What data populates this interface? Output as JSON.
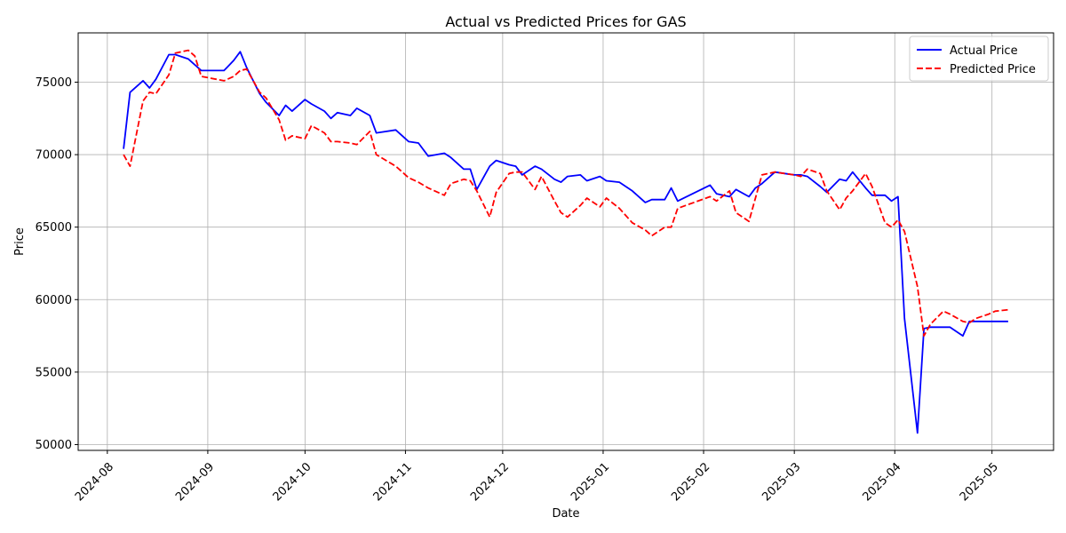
{
  "chart_data": {
    "type": "line",
    "title": "Actual vs Predicted Prices for GAS",
    "xlabel": "Date",
    "ylabel": "Price",
    "grid": true,
    "legend_position": "top-right",
    "x_range": [
      "2024-07-23",
      "2025-05-20"
    ],
    "ylim": [
      49600,
      78400
    ],
    "x_ticks": [
      "2024-08",
      "2024-09",
      "2024-10",
      "2024-11",
      "2024-12",
      "2025-01",
      "2025-02",
      "2025-03",
      "2025-04",
      "2025-05"
    ],
    "y_ticks": [
      50000,
      55000,
      60000,
      65000,
      70000,
      75000
    ],
    "colors": {
      "actual": "#0000ff",
      "predicted": "#ff0000"
    },
    "series": [
      {
        "name": "Actual Price",
        "color": "#0000ff",
        "style": "solid",
        "x": [
          "2024-08-06",
          "2024-08-08",
          "2024-08-12",
          "2024-08-14",
          "2024-08-16",
          "2024-08-20",
          "2024-08-22",
          "2024-08-26",
          "2024-08-28",
          "2024-08-30",
          "2024-09-06",
          "2024-09-09",
          "2024-09-11",
          "2024-09-13",
          "2024-09-17",
          "2024-09-19",
          "2024-09-23",
          "2024-09-25",
          "2024-09-27",
          "2024-10-01",
          "2024-10-03",
          "2024-10-07",
          "2024-10-09",
          "2024-10-11",
          "2024-10-15",
          "2024-10-17",
          "2024-10-21",
          "2024-10-23",
          "2024-10-29",
          "2024-11-02",
          "2024-11-05",
          "2024-11-08",
          "2024-11-13",
          "2024-11-15",
          "2024-11-19",
          "2024-11-21",
          "2024-11-23",
          "2024-11-27",
          "2024-11-29",
          "2024-12-03",
          "2024-12-05",
          "2024-12-07",
          "2024-12-11",
          "2024-12-13",
          "2024-12-17",
          "2024-12-19",
          "2024-12-21",
          "2024-12-25",
          "2024-12-27",
          "2024-12-31",
          "2025-01-02",
          "2025-01-06",
          "2025-01-10",
          "2025-01-14",
          "2025-01-16",
          "2025-01-20",
          "2025-01-22",
          "2025-01-24",
          "2025-02-03",
          "2025-02-05",
          "2025-02-09",
          "2025-02-11",
          "2025-02-15",
          "2025-02-17",
          "2025-02-19",
          "2025-02-23",
          "2025-03-01",
          "2025-03-03",
          "2025-03-05",
          "2025-03-09",
          "2025-03-11",
          "2025-03-15",
          "2025-03-17",
          "2025-03-19",
          "2025-03-23",
          "2025-03-25",
          "2025-03-29",
          "2025-03-31",
          "2025-04-02",
          "2025-04-04",
          "2025-04-08",
          "2025-04-10",
          "2025-04-12",
          "2025-04-16",
          "2025-04-18",
          "2025-04-22",
          "2025-04-24",
          "2025-04-26",
          "2025-04-30",
          "2025-05-02",
          "2025-05-06"
        ],
        "values": [
          70400,
          74300,
          75100,
          74600,
          75200,
          76900,
          76900,
          76600,
          76200,
          75800,
          75800,
          76500,
          77100,
          76000,
          74200,
          73600,
          72700,
          73400,
          73000,
          73800,
          73500,
          73000,
          72500,
          72900,
          72700,
          73200,
          72700,
          71500,
          71700,
          70900,
          70800,
          69900,
          70100,
          69800,
          69000,
          69000,
          67600,
          69200,
          69600,
          69300,
          69200,
          68600,
          69200,
          69000,
          68300,
          68100,
          68500,
          68600,
          68200,
          68500,
          68200,
          68100,
          67500,
          66700,
          66900,
          66900,
          67700,
          66800,
          67900,
          67300,
          67100,
          67600,
          67100,
          67700,
          68000,
          68800,
          68600,
          68600,
          68500,
          67800,
          67400,
          68300,
          68200,
          68800,
          67700,
          67200,
          67200,
          66800,
          67100,
          58700,
          50800,
          58000,
          58100,
          58100,
          58100,
          57500,
          58500,
          58500,
          58500,
          58500,
          58500
        ]
      },
      {
        "name": "Predicted Price",
        "color": "#ff0000",
        "style": "dashed",
        "x": [
          "2024-08-06",
          "2024-08-08",
          "2024-08-12",
          "2024-08-14",
          "2024-08-16",
          "2024-08-20",
          "2024-08-22",
          "2024-08-26",
          "2024-08-28",
          "2024-08-30",
          "2024-09-06",
          "2024-09-09",
          "2024-09-11",
          "2024-09-13",
          "2024-09-17",
          "2024-09-19",
          "2024-09-23",
          "2024-09-25",
          "2024-09-27",
          "2024-10-01",
          "2024-10-03",
          "2024-10-07",
          "2024-10-09",
          "2024-10-11",
          "2024-10-15",
          "2024-10-17",
          "2024-10-21",
          "2024-10-23",
          "2024-10-29",
          "2024-11-02",
          "2024-11-05",
          "2024-11-08",
          "2024-11-13",
          "2024-11-15",
          "2024-11-19",
          "2024-11-21",
          "2024-11-23",
          "2024-11-27",
          "2024-11-29",
          "2024-12-03",
          "2024-12-05",
          "2024-12-07",
          "2024-12-11",
          "2024-12-13",
          "2024-12-17",
          "2024-12-19",
          "2024-12-21",
          "2024-12-25",
          "2024-12-27",
          "2024-12-31",
          "2025-01-02",
          "2025-01-06",
          "2025-01-10",
          "2025-01-14",
          "2025-01-16",
          "2025-01-20",
          "2025-01-22",
          "2025-01-24",
          "2025-02-03",
          "2025-02-05",
          "2025-02-09",
          "2025-02-11",
          "2025-02-15",
          "2025-02-17",
          "2025-02-19",
          "2025-02-23",
          "2025-03-01",
          "2025-03-03",
          "2025-03-05",
          "2025-03-09",
          "2025-03-11",
          "2025-03-15",
          "2025-03-17",
          "2025-03-19",
          "2025-03-23",
          "2025-03-25",
          "2025-03-29",
          "2025-03-31",
          "2025-04-02",
          "2025-04-04",
          "2025-04-08",
          "2025-04-10",
          "2025-04-12",
          "2025-04-16",
          "2025-04-18",
          "2025-04-22",
          "2025-04-24",
          "2025-04-26",
          "2025-04-30",
          "2025-05-02",
          "2025-05-06"
        ],
        "values": [
          70000,
          69200,
          73700,
          74300,
          74200,
          75500,
          77000,
          77200,
          76800,
          75400,
          75100,
          75400,
          75800,
          75900,
          74300,
          73900,
          72400,
          71000,
          71300,
          71100,
          72000,
          71500,
          70900,
          70900,
          70800,
          70700,
          71600,
          70000,
          69200,
          68400,
          68100,
          67700,
          67200,
          68000,
          68300,
          68200,
          67500,
          65700,
          67400,
          68700,
          68800,
          68800,
          67600,
          68500,
          66800,
          66000,
          65700,
          66500,
          67000,
          66400,
          67000,
          66300,
          65300,
          64800,
          64400,
          65000,
          65000,
          66300,
          67100,
          66800,
          67500,
          66000,
          65400,
          67000,
          68600,
          68800,
          68600,
          68500,
          69000,
          68700,
          67500,
          66200,
          67000,
          67500,
          68700,
          67800,
          65300,
          65000,
          65500,
          64700,
          60900,
          57500,
          58300,
          59200,
          59000,
          58500,
          58400,
          58700,
          59000,
          59200,
          59300
        ]
      }
    ]
  }
}
